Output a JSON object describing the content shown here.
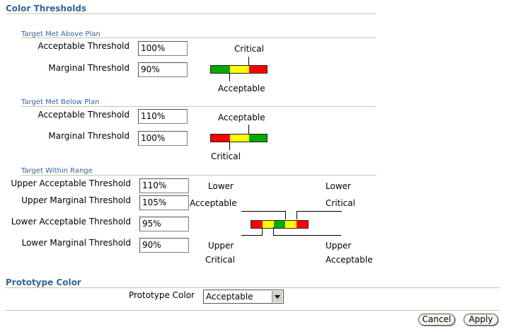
{
  "color_thresholds": {
    "title": "Color Thresholds",
    "above_plan": {
      "subtitle": "Target Met Above Plan",
      "acceptable_label": "Acceptable Threshold",
      "acceptable_value": "100%",
      "marginal_label": "Marginal Threshold",
      "marginal_value": "90%",
      "top_caption": "Critical",
      "bottom_caption": "Acceptable"
    },
    "below_plan": {
      "subtitle": "Target Met Below Plan",
      "acceptable_label": "Acceptable Threshold",
      "acceptable_value": "110%",
      "marginal_label": "Marginal Threshold",
      "marginal_value": "100%",
      "top_caption": "Acceptable",
      "bottom_caption": "Critical"
    },
    "within_range": {
      "subtitle": "Target Within Range",
      "upper_acceptable_label": "Upper Acceptable Threshold",
      "upper_acceptable_value": "110%",
      "upper_marginal_label": "Upper Marginal Threshold",
      "upper_marginal_value": "105%",
      "lower_acceptable_label": "Lower Acceptable Threshold",
      "lower_acceptable_value": "95%",
      "lower_marginal_label": "Lower Marginal Threshold",
      "lower_marginal_value": "90%",
      "top_left_line1": "Lower",
      "top_left_line2": "Acceptable",
      "top_right_line1": "Lower",
      "top_right_line2": "Critical",
      "bottom_left_line1": "Upper",
      "bottom_left_line2": "Critical",
      "bottom_right_line1": "Upper",
      "bottom_right_line2": "Acceptable"
    }
  },
  "prototype": {
    "title": "Prototype Color",
    "label": "Prototype Color",
    "selected": "Acceptable"
  },
  "buttons": {
    "cancel": "Cancel",
    "apply": "Apply"
  },
  "colors": {
    "heading": "#336699",
    "green": "#00aa00",
    "yellow": "#ffff00",
    "red": "#ff0000"
  }
}
